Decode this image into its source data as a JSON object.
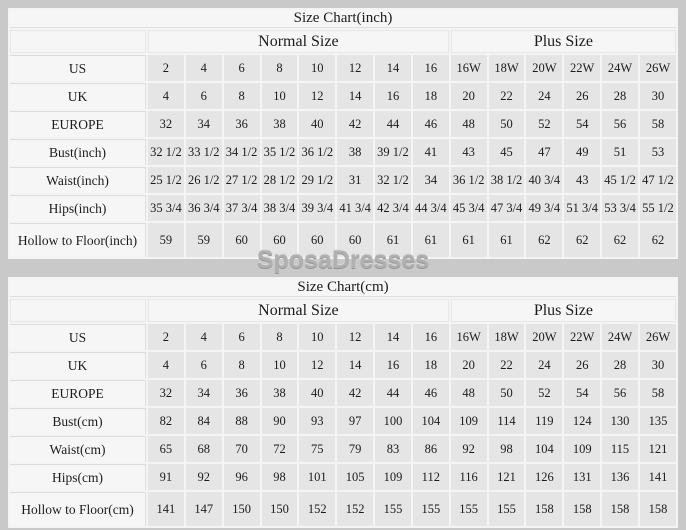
{
  "watermark": "SposaDresses",
  "colors": {
    "page_background": "#c9c9c9",
    "table_background": "#f4f4f4",
    "header_cell_background": "#f6f6f6",
    "data_cell_background": "#e5e5e5",
    "text": "#1c1c1c",
    "watermark": "#b0b0b0"
  },
  "chart_data": [
    {
      "type": "table",
      "title": "Size Chart(inch)",
      "column_groups": [
        {
          "label": "Normal Size",
          "span": 8
        },
        {
          "label": "Plus Size",
          "span": 6
        }
      ],
      "rows": [
        {
          "label": "US",
          "values": [
            "2",
            "4",
            "6",
            "8",
            "10",
            "12",
            "14",
            "16",
            "16W",
            "18W",
            "20W",
            "22W",
            "24W",
            "26W"
          ]
        },
        {
          "label": "UK",
          "values": [
            "4",
            "6",
            "8",
            "10",
            "12",
            "14",
            "16",
            "18",
            "20",
            "22",
            "24",
            "26",
            "28",
            "30"
          ]
        },
        {
          "label": "EUROPE",
          "values": [
            "32",
            "34",
            "36",
            "38",
            "40",
            "42",
            "44",
            "46",
            "48",
            "50",
            "52",
            "54",
            "56",
            "58"
          ]
        },
        {
          "label": "Bust(inch)",
          "values": [
            "32 1/2",
            "33 1/2",
            "34 1/2",
            "35 1/2",
            "36 1/2",
            "38",
            "39 1/2",
            "41",
            "43",
            "45",
            "47",
            "49",
            "51",
            "53"
          ]
        },
        {
          "label": "Waist(inch)",
          "values": [
            "25 1/2",
            "26 1/2",
            "27 1/2",
            "28 1/2",
            "29 1/2",
            "31",
            "32 1/2",
            "34",
            "36 1/2",
            "38 1/2",
            "40 3/4",
            "43",
            "45 1/2",
            "47 1/2"
          ]
        },
        {
          "label": "Hips(inch)",
          "values": [
            "35 3/4",
            "36 3/4",
            "37 3/4",
            "38 3/4",
            "39 3/4",
            "41 3/4",
            "42 3/4",
            "44 3/4",
            "45 3/4",
            "47 3/4",
            "49 3/4",
            "51 3/4",
            "53 3/4",
            "55 1/2"
          ]
        },
        {
          "label": "Hollow to Floor(inch)",
          "values": [
            "59",
            "59",
            "60",
            "60",
            "60",
            "60",
            "61",
            "61",
            "61",
            "61",
            "62",
            "62",
            "62",
            "62"
          ]
        }
      ]
    },
    {
      "type": "table",
      "title": "Size Chart(cm)",
      "column_groups": [
        {
          "label": "Normal Size",
          "span": 8
        },
        {
          "label": "Plus Size",
          "span": 6
        }
      ],
      "rows": [
        {
          "label": "US",
          "values": [
            "2",
            "4",
            "6",
            "8",
            "10",
            "12",
            "14",
            "16",
            "16W",
            "18W",
            "20W",
            "22W",
            "24W",
            "26W"
          ]
        },
        {
          "label": "UK",
          "values": [
            "4",
            "6",
            "8",
            "10",
            "12",
            "14",
            "16",
            "18",
            "20",
            "22",
            "24",
            "26",
            "28",
            "30"
          ]
        },
        {
          "label": "EUROPE",
          "values": [
            "32",
            "34",
            "36",
            "38",
            "40",
            "42",
            "44",
            "46",
            "48",
            "50",
            "52",
            "54",
            "56",
            "58"
          ]
        },
        {
          "label": "Bust(cm)",
          "values": [
            "82",
            "84",
            "88",
            "90",
            "93",
            "97",
            "100",
            "104",
            "109",
            "114",
            "119",
            "124",
            "130",
            "135"
          ]
        },
        {
          "label": "Waist(cm)",
          "values": [
            "65",
            "68",
            "70",
            "72",
            "75",
            "79",
            "83",
            "86",
            "92",
            "98",
            "104",
            "109",
            "115",
            "121"
          ]
        },
        {
          "label": "Hips(cm)",
          "values": [
            "91",
            "92",
            "96",
            "98",
            "101",
            "105",
            "109",
            "112",
            "116",
            "121",
            "126",
            "131",
            "136",
            "141"
          ]
        },
        {
          "label": "Hollow to Floor(cm)",
          "values": [
            "141",
            "147",
            "150",
            "150",
            "152",
            "152",
            "155",
            "155",
            "155",
            "155",
            "158",
            "158",
            "158",
            "158"
          ]
        }
      ]
    }
  ]
}
